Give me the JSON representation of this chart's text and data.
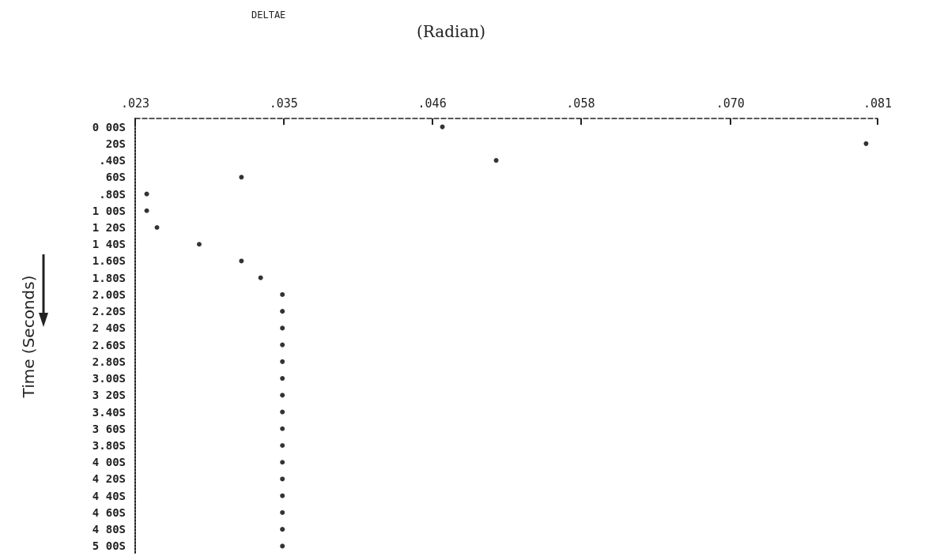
{
  "chart_data": {
    "type": "scatter",
    "title": "DELTAE",
    "xlabel": "(Radian)",
    "ylabel": "Time (Seconds)",
    "categories": [
      "0 00S",
      "20S",
      ".40S",
      "60S",
      ".80S",
      "1 00S",
      "1 20S",
      "1 40S",
      "1.60S",
      "1.80S",
      "2.00S",
      "2.20S",
      "2 40S",
      "2.60S",
      "2.80S",
      "3.00S",
      "3 20S",
      "3.40S",
      "3 60S",
      "3.80S",
      "4 00S",
      "4 20S",
      "4 40S",
      "4 60S",
      "4 80S",
      "5 00S"
    ],
    "series": [
      {
        "color": "#000000",
        "values": [
          0.047,
          0.0801,
          0.0512,
          0.0313,
          0.0239,
          0.0239,
          0.0247,
          0.028,
          0.0313,
          0.0328,
          0.0345,
          0.0345,
          0.0345,
          0.0345,
          0.0345,
          0.0345,
          0.0345,
          0.0345,
          0.0345,
          0.0345,
          0.0345,
          0.0345,
          0.0345,
          0.0345,
          0.0345,
          0.0345
        ]
      }
    ],
    "xlim": [
      0.023,
      0.081
    ],
    "xticks": [
      {
        "value": 0.023,
        "label": ".023"
      },
      {
        "value": 0.0346,
        "label": ".035"
      },
      {
        "value": 0.0462,
        "label": ".046"
      },
      {
        "value": 0.0578,
        "label": ".058"
      },
      {
        "value": 0.0695,
        "label": ".070"
      },
      {
        "value": 0.081,
        "label": ".081"
      }
    ],
    "orientation": "horizontal",
    "grid": false,
    "marker": "circle"
  }
}
